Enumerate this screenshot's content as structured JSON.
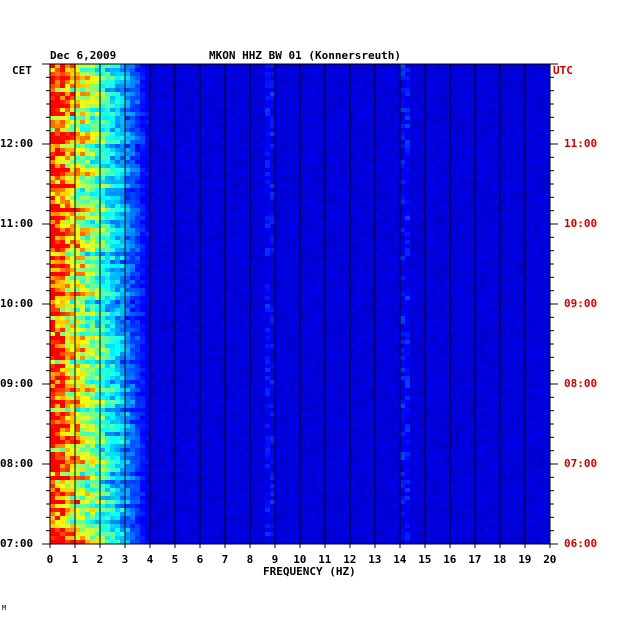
{
  "chart_data": {
    "type": "heatmap",
    "date": "Dec 6,2009",
    "title": "MKON HHZ BW 01 (Konnersreuth)",
    "left_axis_label": "CET",
    "right_axis_label": "UTC",
    "xlabel": "FREQUENCY (HZ)",
    "xlim": [
      0,
      20
    ],
    "x_ticks": [
      "0",
      "1",
      "2",
      "3",
      "4",
      "5",
      "6",
      "7",
      "8",
      "9",
      "10",
      "11",
      "12",
      "13",
      "14",
      "15",
      "16",
      "17",
      "18",
      "19",
      "20"
    ],
    "time_range_cet_hours": [
      7,
      13
    ],
    "left_ticks": [
      {
        "hour": 12,
        "label": "12:00"
      },
      {
        "hour": 11,
        "label": "11:00"
      },
      {
        "hour": 10,
        "label": "10:00"
      },
      {
        "hour": 9,
        "label": "09:00"
      },
      {
        "hour": 8,
        "label": "08:00"
      },
      {
        "hour": 7,
        "label": "07:00"
      }
    ],
    "right_ticks": [
      {
        "hour": 12,
        "label": "11:00"
      },
      {
        "hour": 11,
        "label": "10:00"
      },
      {
        "hour": 10,
        "label": "09:00"
      },
      {
        "hour": 9,
        "label": "08:00"
      },
      {
        "hour": 8,
        "label": "07:00"
      },
      {
        "hour": 7,
        "label": "06:00"
      }
    ],
    "colormap": [
      "#000080",
      "#0000ff",
      "#00ffff",
      "#ffff00",
      "#ff0000"
    ],
    "grid": "vertical lines at every 1 Hz",
    "description": "Seismic spectrogram; strongest energy (yellow/red) below ~3 Hz, weak narrow lines near 9 Hz and 14.2 Hz, blue background elsewhere",
    "peak_lines_hz": [
      8.8,
      14.2
    ],
    "strong_band_hz": [
      0,
      3
    ]
  },
  "corner_mark": "M"
}
